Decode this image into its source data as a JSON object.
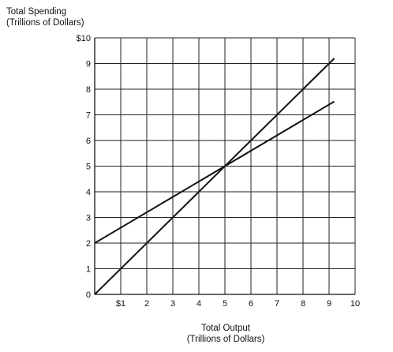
{
  "chart_data": {
    "type": "line",
    "ylabel": "Total Spending",
    "ylabel_sub": "(Trillions of Dollars)",
    "xlabel": "Total Output",
    "xlabel_sub": "(Trillions of Dollars)",
    "xlim": [
      0,
      10
    ],
    "ylim": [
      0,
      10
    ],
    "grid": true,
    "x_ticks": [
      {
        "value": 1,
        "label": "$1"
      },
      {
        "value": 2,
        "label": "2"
      },
      {
        "value": 3,
        "label": "3"
      },
      {
        "value": 4,
        "label": "4"
      },
      {
        "value": 5,
        "label": "5"
      },
      {
        "value": 6,
        "label": "6"
      },
      {
        "value": 7,
        "label": "7"
      },
      {
        "value": 8,
        "label": "8"
      },
      {
        "value": 9,
        "label": "9"
      },
      {
        "value": 10,
        "label": "10"
      }
    ],
    "y_ticks": [
      {
        "value": 0,
        "label": "0"
      },
      {
        "value": 1,
        "label": "1"
      },
      {
        "value": 2,
        "label": "2"
      },
      {
        "value": 3,
        "label": "3"
      },
      {
        "value": 4,
        "label": "4"
      },
      {
        "value": 5,
        "label": "5"
      },
      {
        "value": 6,
        "label": "6"
      },
      {
        "value": 7,
        "label": "7"
      },
      {
        "value": 8,
        "label": "8"
      },
      {
        "value": 9,
        "label": "9"
      },
      {
        "value": 10,
        "label": "$10"
      }
    ],
    "series": [
      {
        "x": [
          0,
          9.2
        ],
        "y": [
          0,
          9.2
        ]
      },
      {
        "x": [
          0,
          9.2
        ],
        "y": [
          2,
          7.52
        ]
      }
    ]
  }
}
